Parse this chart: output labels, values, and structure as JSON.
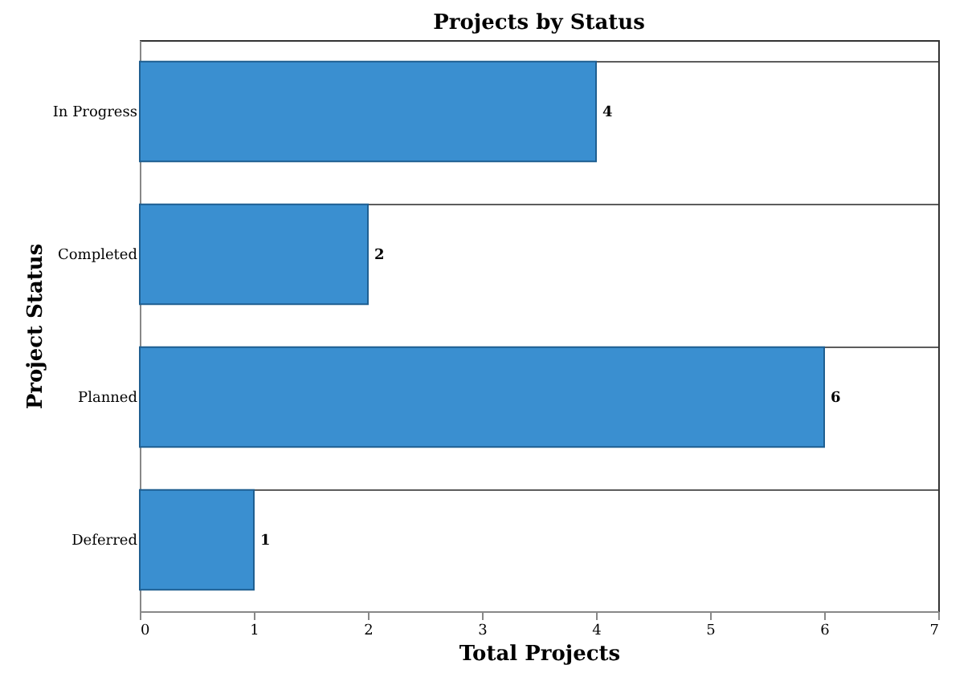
{
  "chart_data": {
    "type": "bar",
    "orientation": "horizontal",
    "title": "Projects by Status",
    "xlabel": "Total Projects",
    "ylabel": "Project Status",
    "categories": [
      "In Progress",
      "Completed",
      "Planned",
      "Deferred"
    ],
    "values": [
      4,
      2,
      6,
      1
    ],
    "color": "#3a8fd0",
    "xlim": [
      0,
      7
    ],
    "xticks": [
      0,
      1,
      2,
      3,
      4,
      5,
      6,
      7
    ],
    "data_labels": true,
    "grid": "y"
  }
}
